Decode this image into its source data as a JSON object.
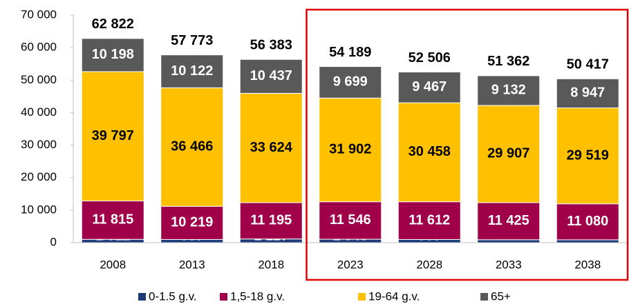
{
  "chart_data": {
    "type": "stacked_bar",
    "categories": [
      "2008",
      "2013",
      "2018",
      "2023",
      "2028",
      "2033",
      "2038"
    ],
    "series": [
      {
        "name": "0-1.5 g.v.",
        "color": "#1f3a7a",
        "values": [
          1012,
          967,
          1127,
          1043,
          969,
          898,
          871
        ],
        "value_labels": [
          "1 012",
          "967",
          "1 127",
          "1 043",
          "969",
          "898",
          "871"
        ]
      },
      {
        "name": "1,5-18 g.v.",
        "color": "#a0004a",
        "values": [
          11815,
          10219,
          11195,
          11546,
          11612,
          11425,
          11080
        ],
        "value_labels": [
          "11 815",
          "10 219",
          "11 195",
          "11 546",
          "11 612",
          "11 425",
          "11 080"
        ]
      },
      {
        "name": "19-64 g.v.",
        "color": "#ffc000",
        "values": [
          39797,
          36466,
          33624,
          31902,
          30458,
          29907,
          29519
        ],
        "value_labels": [
          "39 797",
          "36 466",
          "33 624",
          "31 902",
          "30 458",
          "29 907",
          "29 519"
        ]
      },
      {
        "name": "65+",
        "color": "#595959",
        "values": [
          10198,
          10122,
          10437,
          9699,
          9467,
          9132,
          8947
        ],
        "value_labels": [
          "10 198",
          "10 122",
          "10 437",
          "9 699",
          "9 467",
          "9 132",
          "8 947"
        ]
      }
    ],
    "totals": {
      "values": [
        62822,
        57773,
        56383,
        54189,
        52506,
        51362,
        50417
      ],
      "value_labels": [
        "62 822",
        "57 773",
        "56 383",
        "54 189",
        "52 506",
        "51 362",
        "50 417"
      ]
    },
    "ylim": [
      0,
      70000
    ],
    "yticks": [
      0,
      {
        "value": 10000,
        "label": "10 000"
      },
      {
        "value": 20000,
        "label": "20 000"
      },
      {
        "value": 30000,
        "label": "30 000"
      },
      {
        "value": 40000,
        "label": "40 000"
      },
      {
        "value": 50000,
        "label": "50 000"
      },
      {
        "value": 60000,
        "label": "60 000"
      },
      {
        "value": 70000,
        "label": "70 000"
      }
    ],
    "legend": "bottom"
  }
}
